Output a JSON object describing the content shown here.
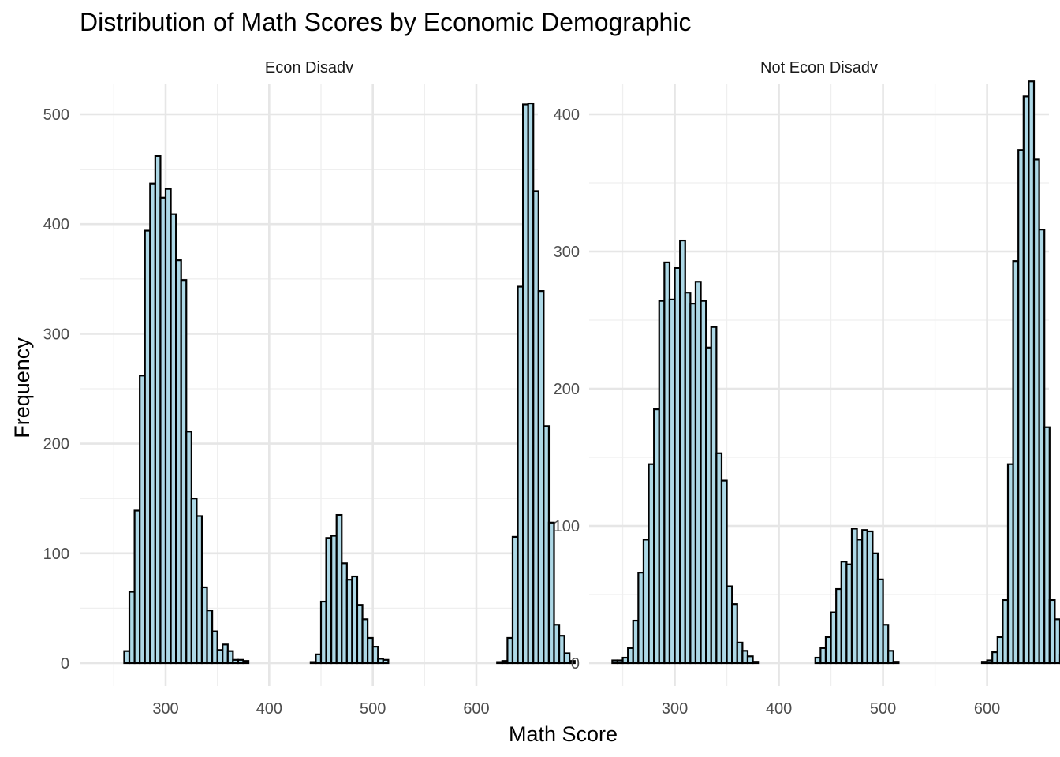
{
  "chart_data": {
    "type": "bar",
    "title": "Distribution of Math Scores by Economic Demographic",
    "xlabel": "Math Score",
    "ylabel": "Frequency",
    "fill_color": "#add8e6",
    "bar_outline_color": "#000000",
    "bin_width": 5,
    "grid": true,
    "xlim": [
      240,
      640
    ],
    "x_ticks": [
      300,
      400,
      500,
      600
    ],
    "panels": [
      {
        "label": "Econ Disadv",
        "ylim": [
          0,
          520
        ],
        "y_ticks": [
          0,
          100,
          200,
          300,
          400,
          500
        ],
        "bin_start": 240,
        "values": [
          0,
          0,
          0,
          0,
          11,
          65,
          139,
          262,
          394,
          437,
          462,
          424,
          432,
          409,
          367,
          349,
          211,
          150,
          134,
          69,
          48,
          29,
          12,
          17,
          11,
          3,
          3,
          2,
          0,
          0,
          0,
          0,
          0,
          0,
          0,
          0,
          0,
          0,
          0,
          0,
          1,
          8,
          56,
          114,
          116,
          135,
          91,
          76,
          79,
          53,
          40,
          23,
          15,
          4,
          3,
          0,
          0,
          0,
          0,
          0,
          0,
          0,
          0,
          0,
          0,
          0,
          0,
          0,
          0,
          0,
          0,
          0,
          0,
          0,
          0,
          0,
          1,
          2,
          23,
          115,
          343,
          509,
          510,
          430,
          339,
          216,
          128,
          35,
          25,
          9,
          2
        ]
      },
      {
        "label": "Not Econ Disadv",
        "ylim": [
          0,
          425
        ],
        "y_ticks": [
          0,
          100,
          200,
          300,
          400
        ],
        "bin_start": 240,
        "values": [
          2,
          2,
          4,
          11,
          31,
          66,
          90,
          145,
          185,
          264,
          292,
          265,
          288,
          308,
          270,
          262,
          278,
          264,
          230,
          245,
          153,
          133,
          56,
          43,
          15,
          9,
          5,
          1,
          0,
          0,
          0,
          0,
          0,
          0,
          0,
          0,
          0,
          0,
          0,
          4,
          11,
          19,
          37,
          54,
          74,
          72,
          98,
          90,
          97,
          96,
          80,
          61,
          28,
          9,
          1,
          0,
          0,
          0,
          0,
          0,
          0,
          0,
          0,
          0,
          0,
          0,
          0,
          0,
          0,
          0,
          0,
          1,
          2,
          8,
          19,
          46,
          145,
          293,
          374,
          413,
          424,
          367,
          316,
          172,
          46,
          32,
          6
        ]
      }
    ]
  }
}
